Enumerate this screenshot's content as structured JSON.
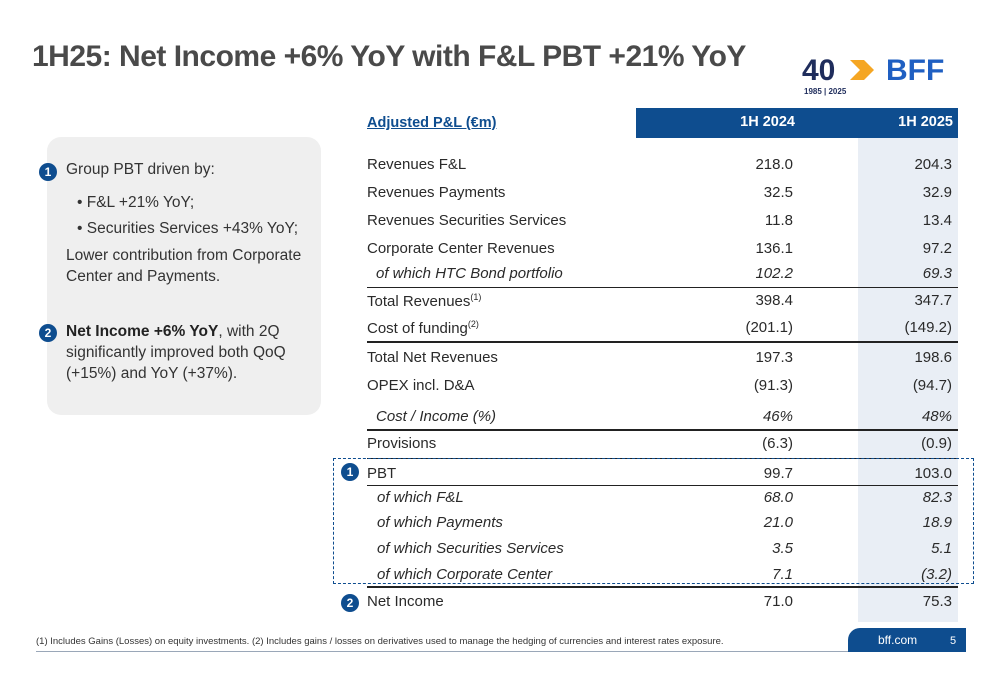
{
  "title": "1H25: Net Income +6% YoY with F&L PBT +21% YoY",
  "logo": {
    "anniversary": "40",
    "brand": "BFF",
    "years": "1985 | 2025"
  },
  "colors": {
    "brand_blue": "#0e4d8f",
    "logo_orange": "#f5a623",
    "shade": "#e9eef5"
  },
  "callouts": [
    {
      "number": "1",
      "heading": "Group PBT driven by:",
      "bullets": [
        "F&L +21% YoY;",
        "Securities Services +43% YoY;"
      ],
      "tail": "Lower contribution from Corporate Center and Payments."
    },
    {
      "number": "2",
      "bold": "Net Income +6% YoY",
      "rest": ", with 2Q significantly improved both QoQ (+15%) and YoY (+37%)."
    }
  ],
  "table": {
    "header": {
      "label": "Adjusted P&L (€m)",
      "col1": "1H 2024",
      "col2": "1H 2025"
    },
    "rows": [
      {
        "label": "Revenues F&L",
        "v1": "218.0",
        "v2": "204.3"
      },
      {
        "label": "Revenues Payments",
        "v1": "32.5",
        "v2": "32.9"
      },
      {
        "label": "Revenues Securities Services",
        "v1": "11.8",
        "v2": "13.4"
      },
      {
        "label": "Corporate Center Revenues",
        "v1": "136.1",
        "v2": "97.2"
      },
      {
        "label": "of which HTC Bond portfolio",
        "v1": "102.2",
        "v2": "69.3"
      },
      {
        "label": "Total Revenues",
        "sup": "(1)",
        "v1": "398.4",
        "v2": "347.7"
      },
      {
        "label": "Cost of funding",
        "sup": "(2)",
        "v1": "(201.1)",
        "v2": "(149.2)"
      },
      {
        "label": "Total Net Revenues",
        "v1": "197.3",
        "v2": "198.6"
      },
      {
        "label": "OPEX incl. D&A",
        "v1": "(91.3)",
        "v2": "(94.7)"
      },
      {
        "label": "Cost / Income (%)",
        "v1": "46%",
        "v2": "48%"
      },
      {
        "label": "Provisions",
        "v1": "(6.3)",
        "v2": "(0.9)"
      },
      {
        "label": "PBT",
        "v1": "99.7",
        "v2": "103.0"
      },
      {
        "label": "of which F&L",
        "v1": "68.0",
        "v2": "82.3"
      },
      {
        "label": "of which Payments",
        "v1": "21.0",
        "v2": "18.9"
      },
      {
        "label": "of which Securities Services",
        "v1": "3.5",
        "v2": "5.1"
      },
      {
        "label": "of which Corporate Center",
        "v1": "7.1",
        "v2": "(3.2)"
      },
      {
        "label": "Net Income",
        "v1": "71.0",
        "v2": "75.3"
      }
    ],
    "markers": {
      "pbt": "1",
      "net_income": "2"
    }
  },
  "footnote": "(1) Includes Gains (Losses) on equity investments.   (2) Includes gains / losses on derivatives used to manage the hedging of currencies and interest rates exposure.",
  "footer": {
    "site": "bff.com",
    "page": "5"
  }
}
